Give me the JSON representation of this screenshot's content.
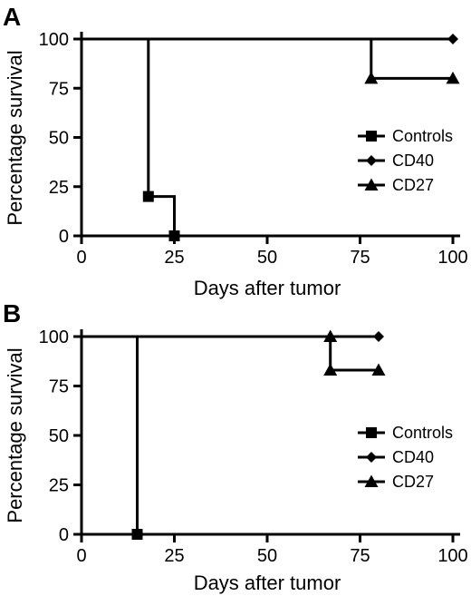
{
  "chart_data": [
    {
      "panel": "A",
      "type": "line",
      "xlabel": "Days after tumor",
      "ylabel": "Percentage survival",
      "xlim": [
        0,
        100
      ],
      "ylim": [
        0,
        100
      ],
      "xticks": [
        0,
        25,
        50,
        75,
        100
      ],
      "yticks": [
        0,
        25,
        50,
        75,
        100
      ],
      "legend_position": "right",
      "series": [
        {
          "name": "Controls",
          "marker": "square",
          "steps": [
            [
              0,
              100
            ],
            [
              18,
              100
            ],
            [
              18,
              20
            ],
            [
              25,
              20
            ],
            [
              25,
              0
            ]
          ],
          "markers": [
            [
              18,
              20
            ],
            [
              25,
              0
            ]
          ]
        },
        {
          "name": "CD40",
          "marker": "diamond",
          "steps": [
            [
              0,
              100
            ],
            [
              100,
              100
            ]
          ],
          "markers": [
            [
              100,
              100
            ]
          ]
        },
        {
          "name": "CD27",
          "marker": "triangle",
          "steps": [
            [
              0,
              100
            ],
            [
              78,
              100
            ],
            [
              78,
              80
            ],
            [
              100,
              80
            ]
          ],
          "markers": [
            [
              78,
              80
            ],
            [
              100,
              80
            ]
          ]
        }
      ]
    },
    {
      "panel": "B",
      "type": "line",
      "xlabel": "Days after tumor",
      "ylabel": "Percentage survival",
      "xlim": [
        0,
        100
      ],
      "ylim": [
        0,
        100
      ],
      "xticks": [
        0,
        25,
        50,
        75,
        100
      ],
      "yticks": [
        0,
        25,
        50,
        75,
        100
      ],
      "legend_position": "right",
      "series": [
        {
          "name": "Controls",
          "marker": "square",
          "steps": [
            [
              0,
              100
            ],
            [
              15,
              100
            ],
            [
              15,
              0
            ]
          ],
          "markers": [
            [
              15,
              0
            ]
          ]
        },
        {
          "name": "CD40",
          "marker": "diamond",
          "steps": [
            [
              0,
              100
            ],
            [
              80,
              100
            ]
          ],
          "markers": [
            [
              80,
              100
            ]
          ]
        },
        {
          "name": "CD27",
          "marker": "triangle",
          "steps": [
            [
              67,
              100
            ],
            [
              67,
              83
            ],
            [
              80,
              83
            ]
          ],
          "markers": [
            [
              67,
              100
            ],
            [
              67,
              83
            ],
            [
              80,
              83
            ]
          ]
        }
      ]
    }
  ]
}
